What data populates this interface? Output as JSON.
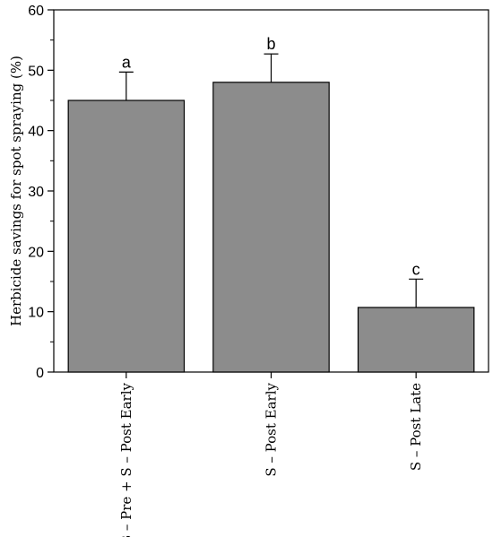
{
  "chart_data": {
    "type": "bar",
    "title": "",
    "xlabel": "",
    "ylabel": "Herbicide savings for spot spraying (%)",
    "categories": [
      "B – Pre + S – Post Early",
      "S – Post Early",
      "S – Post Late"
    ],
    "values": [
      45,
      48,
      10.7
    ],
    "errors": [
      4.7,
      4.7,
      4.7
    ],
    "significance": [
      "a",
      "b",
      "c"
    ],
    "ylim": [
      0,
      60
    ],
    "yticks": [
      0,
      10,
      20,
      30,
      40,
      50,
      60
    ],
    "grid": false,
    "colors": {
      "bar": "#8c8c8c",
      "stroke": "#000000"
    }
  }
}
